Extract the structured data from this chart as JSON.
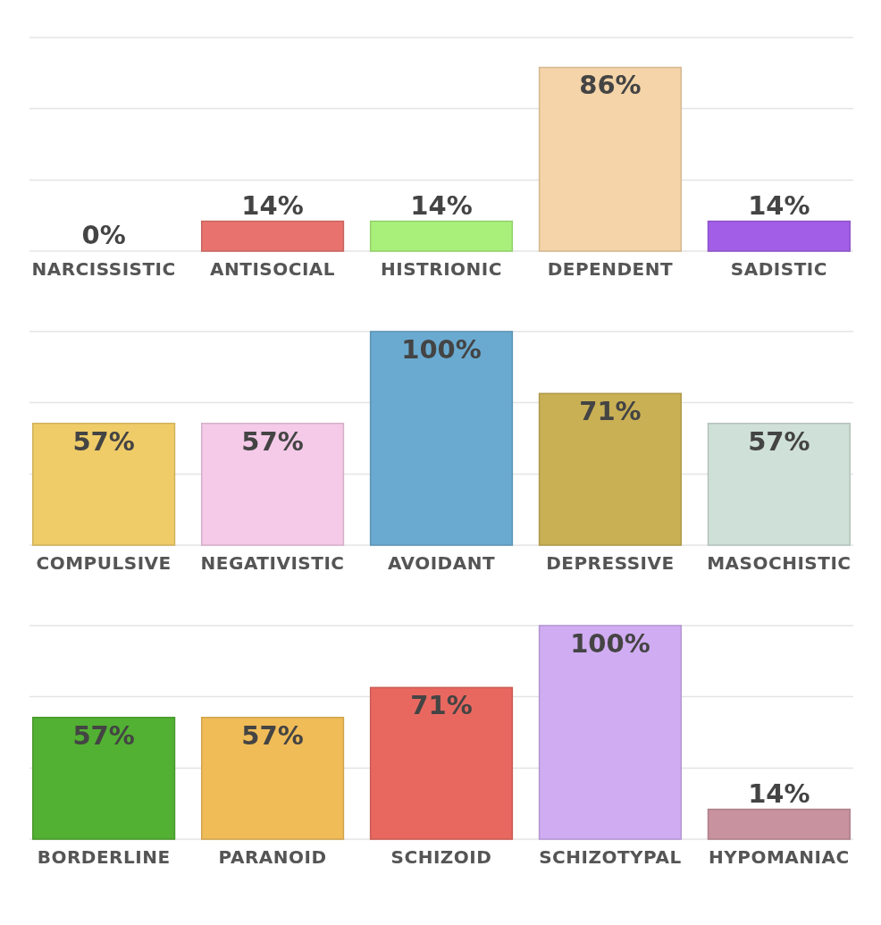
{
  "chart_data": [
    {
      "type": "bar",
      "categories": [
        "NARCISSISTIC",
        "ANTISOCIAL",
        "HISTRIONIC",
        "DEPENDENT",
        "SADISTIC"
      ],
      "values": [
        0,
        14,
        14,
        86,
        14
      ],
      "colors": [
        "#5ecfc4",
        "#e8736e",
        "#a8f07a",
        "#f4d4a8",
        "#a35ee8"
      ],
      "ylim": [
        0,
        100
      ],
      "yticks": [
        {
          "value": 0,
          "label": null
        },
        {
          "value": 33.3,
          "label": null
        },
        {
          "value": 66.7,
          "label": null
        },
        {
          "value": 100,
          "label": null
        }
      ],
      "grid": "y",
      "tick_labels": "x",
      "data_labels": true,
      "value_labels": [
        "0%",
        "14%",
        "14%",
        "86%",
        "14%"
      ]
    },
    {
      "type": "bar",
      "categories": [
        "COMPULSIVE",
        "NEGATIVISTIC",
        "AVOIDANT",
        "DEPRESSIVE",
        "MASOCHISTIC"
      ],
      "values": [
        57,
        57,
        100,
        71,
        57
      ],
      "colors": [
        "#f0cc68",
        "#f4cae8",
        "#6aaad0",
        "#c9b055",
        "#cfe0d8"
      ],
      "ylim": [
        0,
        100
      ],
      "yticks": [
        {
          "value": 0,
          "label": null
        },
        {
          "value": 33.3,
          "label": null
        },
        {
          "value": 66.7,
          "label": null
        },
        {
          "value": 100,
          "label": null
        }
      ],
      "grid": "y",
      "tick_labels": "x",
      "data_labels": true,
      "value_labels": [
        "57%",
        "57%",
        "100%",
        "71%",
        "57%"
      ]
    },
    {
      "type": "bar",
      "categories": [
        "BORDERLINE",
        "PARANOID",
        "SCHIZOID",
        "SCHIZOTYPAL",
        "HYPOMANIAC"
      ],
      "values": [
        57,
        57,
        71,
        100,
        14
      ],
      "colors": [
        "#52b032",
        "#f0bc58",
        "#e86860",
        "#d0acf2",
        "#c8929e"
      ],
      "ylim": [
        0,
        100
      ],
      "yticks": [
        {
          "value": 0,
          "label": null
        },
        {
          "value": 33.3,
          "label": null
        },
        {
          "value": 66.7,
          "label": null
        },
        {
          "value": 100,
          "label": null
        }
      ],
      "grid": "y",
      "tick_labels": "x",
      "data_labels": true,
      "value_labels": [
        "57%",
        "57%",
        "71%",
        "100%",
        "14%"
      ]
    }
  ]
}
